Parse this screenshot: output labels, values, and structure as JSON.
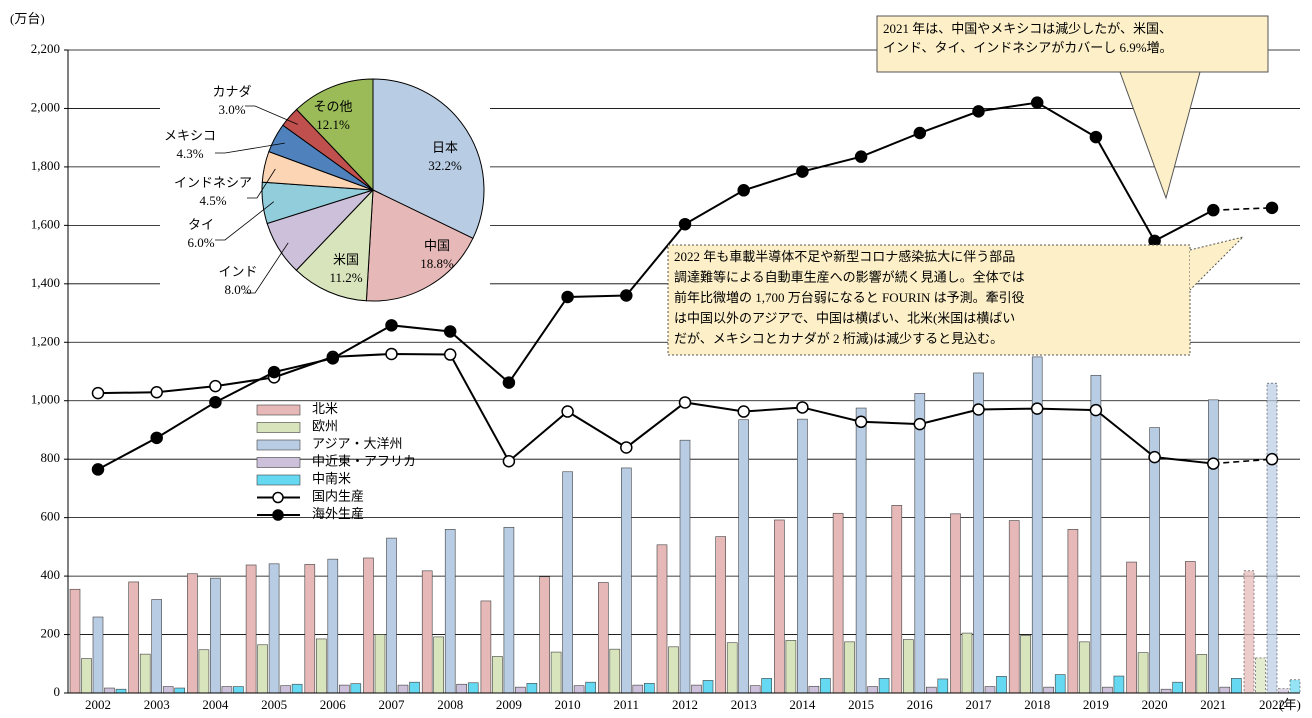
{
  "chart_data": {
    "type": "bar",
    "y_unit": "(万台)",
    "x_unit": "(年)",
    "categories": [
      "2002",
      "2003",
      "2004",
      "2005",
      "2006",
      "2007",
      "2008",
      "2009",
      "2010",
      "2011",
      "2012",
      "2013",
      "2014",
      "2015",
      "2016",
      "2017",
      "2018",
      "2019",
      "2020",
      "2021",
      "2022"
    ],
    "ylim": [
      0,
      2200
    ],
    "yticks": [
      0,
      200,
      400,
      600,
      800,
      {
        "value": 1000,
        "label": "1,000"
      },
      {
        "value": 1200,
        "label": "1,200"
      },
      {
        "value": 1400,
        "label": "1,400"
      },
      {
        "value": 1600,
        "label": "1,600"
      },
      {
        "value": 1800,
        "label": "1,800"
      },
      {
        "value": 2000,
        "label": "2,000"
      },
      {
        "value": 2200,
        "label": "2,200"
      }
    ],
    "grid": true,
    "series": [
      {
        "name": "北米",
        "type": "bar",
        "color": "#e6b8b7",
        "values": [
          355,
          380,
          408,
          438,
          440,
          462,
          418,
          315,
          398,
          378,
          507,
          535,
          592,
          615,
          642,
          613,
          590,
          560,
          448,
          450,
          418
        ]
      },
      {
        "name": "欧州",
        "type": "bar",
        "color": "#d8e4bc",
        "values": [
          118,
          133,
          148,
          165,
          185,
          200,
          192,
          125,
          140,
          150,
          158,
          172,
          180,
          175,
          183,
          205,
          197,
          175,
          138,
          132,
          120
        ]
      },
      {
        "name": "アジア・大洋州",
        "type": "bar",
        "color": "#b8cce4",
        "values": [
          260,
          320,
          393,
          442,
          458,
          530,
          560,
          567,
          757,
          770,
          865,
          935,
          937,
          975,
          1025,
          1095,
          1150,
          1087,
          908,
          1003,
          1060
        ]
      },
      {
        "name": "中近東・アフリカ",
        "type": "bar",
        "color": "#ccc0da",
        "values": [
          17,
          22,
          22,
          25,
          27,
          27,
          30,
          20,
          25,
          27,
          27,
          25,
          23,
          22,
          20,
          22,
          20,
          20,
          13,
          20,
          15
        ]
      },
      {
        "name": "中南米",
        "type": "bar",
        "color": "#66d9f2",
        "values": [
          13,
          17,
          22,
          30,
          32,
          37,
          35,
          33,
          37,
          33,
          43,
          50,
          50,
          50,
          48,
          57,
          63,
          58,
          37,
          50,
          45
        ]
      },
      {
        "name": "国内生産",
        "type": "line",
        "color": "#000000",
        "marker_fill": "#ffffff",
        "values": [
          1026,
          1029,
          1050,
          1080,
          1150,
          1160,
          1158,
          793,
          963,
          840,
          994,
          963,
          977,
          928,
          920,
          970,
          973,
          968,
          807,
          785,
          800
        ]
      },
      {
        "name": "海外生産",
        "type": "line",
        "color": "#000000",
        "marker_fill": "#000000",
        "values": [
          765,
          873,
          995,
          1098,
          1145,
          1258,
          1237,
          1062,
          1355,
          1360,
          1604,
          1720,
          1784,
          1835,
          1916,
          1990,
          2020,
          1902,
          1547,
          1652,
          1660
        ]
      }
    ],
    "pie": {
      "type": "pie",
      "categories": [
        "日本",
        "中国",
        "米国",
        "インド",
        "タイ",
        "インドネシア",
        "メキシコ",
        "カナダ",
        "その他"
      ],
      "values": [
        32.2,
        18.8,
        11.2,
        8.0,
        6.0,
        4.5,
        4.3,
        3.0,
        12.1
      ],
      "value_labels": [
        "32.2%",
        "18.8%",
        "11.2%",
        "8.0%",
        "6.0%",
        "4.5%",
        "4.3%",
        "3.0%",
        "12.1%"
      ],
      "colors": [
        "#b8cce4",
        "#e6b8b7",
        "#d8e4bc",
        "#ccc0da",
        "#92cddc",
        "#fcd5b4",
        "#4f81bd",
        "#c0504d",
        "#9bbb59"
      ]
    },
    "annotations": [
      {
        "lines": [
          "2021 年は、中国やメキシコは減少したが、米国、",
          "インド、タイ、インドネシアがカバーし 6.9%増。"
        ]
      },
      {
        "lines": [
          "2022 年も車載半導体不足や新型コロナ感染拡大に伴う部品",
          "調達難等による自動車生産への影響が続く見通し。全体では",
          "前年比微増の 1,700 万台弱になると FOURIN は予測。牽引役",
          "は中国以外のアジアで、中国は横ばい、北米(米国は横ばい",
          "だが、メキシコとカナダが 2 桁減)は減少すると見込む。"
        ]
      }
    ]
  }
}
